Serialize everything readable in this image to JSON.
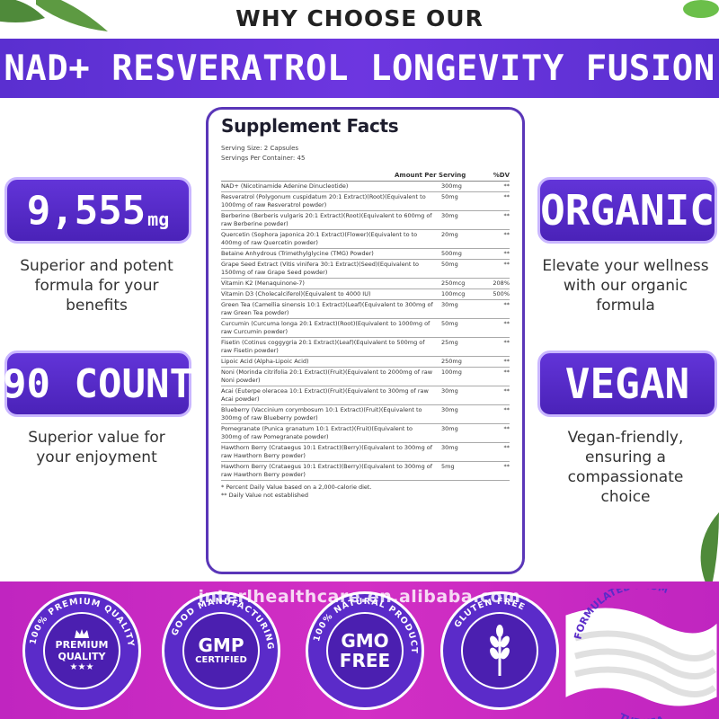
{
  "header": {
    "kicker": "WHY CHOOSE OUR",
    "title": "NAD+ RESVERATROL LONGEVITY FUSION",
    "banner_color": "#6234d8"
  },
  "left": {
    "stat1": {
      "value": "9,555",
      "unit": "mg",
      "caption": [
        "Superior and potent",
        "formula for your",
        "benefits"
      ]
    },
    "stat2": {
      "value": "90 COUNT",
      "caption": [
        "Superior value for",
        "your enjoyment"
      ]
    }
  },
  "right": {
    "stat1": {
      "value": "ORGANIC",
      "caption": [
        "Elevate your wellness",
        "with our organic",
        "formula"
      ]
    },
    "stat2": {
      "value": "VEGAN",
      "caption": [
        "Vegan-friendly,",
        "ensuring a",
        "compassionate",
        "choice"
      ]
    }
  },
  "facts": {
    "title": "Supplement Facts",
    "serving_size": "Serving Size: 2 Capsules",
    "servings_per_container": "Servings Per Container: 45",
    "col_amount": "Amount Per Serving",
    "col_dv": "%DV",
    "rows": [
      {
        "name": "NAD+ (Nicotinamide Adenine Dinucleotide)",
        "amount": "300mg",
        "dv": "**"
      },
      {
        "name": "Resveratrol (Polygonum cuspidatum 20:1 Extract)(Root)(Equivalent to 1000mg of raw Resveratrol powder)",
        "amount": "50mg",
        "dv": "**"
      },
      {
        "name": "Berberine (Berberis vulgaris 20:1 Extract)(Root)(Equivalent to 600mg of raw Berberine powder)",
        "amount": "30mg",
        "dv": "**"
      },
      {
        "name": "Quercetin (Sophora japonica 20:1 Extract)(Flower)(Equivalent to to 400mg of raw Quercetin powder)",
        "amount": "20mg",
        "dv": "**"
      },
      {
        "name": "Betaine Anhydrous (Trimethylglycine (TMG) Powder)",
        "amount": "500mg",
        "dv": "**"
      },
      {
        "name": "Grape Seed Extract (Vitis vinifera 30:1 Extract)(Seed)(Equivalent to 1500mg of raw Grape Seed powder)",
        "amount": "50mg",
        "dv": "**"
      },
      {
        "name": "Vitamin K2 (Menaquinone-7)",
        "amount": "250mcg",
        "dv": "208%"
      },
      {
        "name": "Vitamin D3 (Cholecalciferol)(Equivalent to 4000 IU)",
        "amount": "100mcg",
        "dv": "500%"
      },
      {
        "name": "Green Tea (Camellia sinensis 10:1 Extract)(Leaf)(Equivalent to 300mg of raw Green Tea powder)",
        "amount": "30mg",
        "dv": "**"
      },
      {
        "name": "Curcumin (Curcuma longa 20:1 Extract)(Root)(Equivalent to 1000mg of raw Curcumin powder)",
        "amount": "50mg",
        "dv": "**"
      },
      {
        "name": "Fisetin (Cotinus coggygria 20:1 Extract)(Leaf)(Equivalent to 500mg of raw Fisetin powder)",
        "amount": "25mg",
        "dv": "**"
      },
      {
        "name": "Lipoic Acid (Alpha-Lipoic Acid)",
        "amount": "250mg",
        "dv": "**"
      },
      {
        "name": "Noni (Morinda citrifolia 20:1 Extract)(Fruit)(Equivalent to 2000mg of raw Noni powder)",
        "amount": "100mg",
        "dv": "**"
      },
      {
        "name": "Acai (Euterpe oleracea 10:1 Extract)(Fruit)(Equivalent to 300mg of raw Acai powder)",
        "amount": "30mg",
        "dv": "**"
      },
      {
        "name": "Blueberry (Vaccinium corymbosum 10:1 Extract)(Fruit)(Equivalent to 300mg of raw Blueberry powder)",
        "amount": "30mg",
        "dv": "**"
      },
      {
        "name": "Pomegranate (Punica granatum 10:1 Extract)(Fruit)(Equivalent to 300mg of raw Pomegranate powder)",
        "amount": "30mg",
        "dv": "**"
      },
      {
        "name": "Hawthorn Berry (Crataegus 10:1 Extract)(Berry)(Equivalent to 300mg of raw Hawthorn Berry powder)",
        "amount": "30mg",
        "dv": "**"
      },
      {
        "name": "Hawthorn Berry (Crataegus 10:1 Extract)(Berry)(Equivalent to 300mg of raw Hawthorn Berry powder)",
        "amount": "5mg",
        "dv": "**"
      }
    ],
    "footnote1": "* Percent Daily Value based on a 2,000-calorie diet.",
    "footnote2": "** Daily Value not established"
  },
  "badges": {
    "premium": {
      "ring": "100% PREMIUM QUALITY",
      "line1": "PREMIUM",
      "line2": "QUALITY",
      "stars": "★★★"
    },
    "gmp": {
      "ring": "GOOD MANUFACTURING",
      "line1": "GMP",
      "line2": "CERTIFIED"
    },
    "gmo": {
      "ring": "100% NATURAL PRODUCT",
      "line1": "GMO",
      "line2": "FREE"
    },
    "gluten": {
      "ring": "GLUTEN FREE",
      "icon": "wheat-icon"
    },
    "usa": {
      "top": "FORMULATED FROM",
      "bottom": "THE USA"
    }
  },
  "watermark": "interlhealthcare.en.alibaba.com",
  "colors": {
    "purple": "#5b2bc9",
    "magenta": "#c828c2"
  }
}
